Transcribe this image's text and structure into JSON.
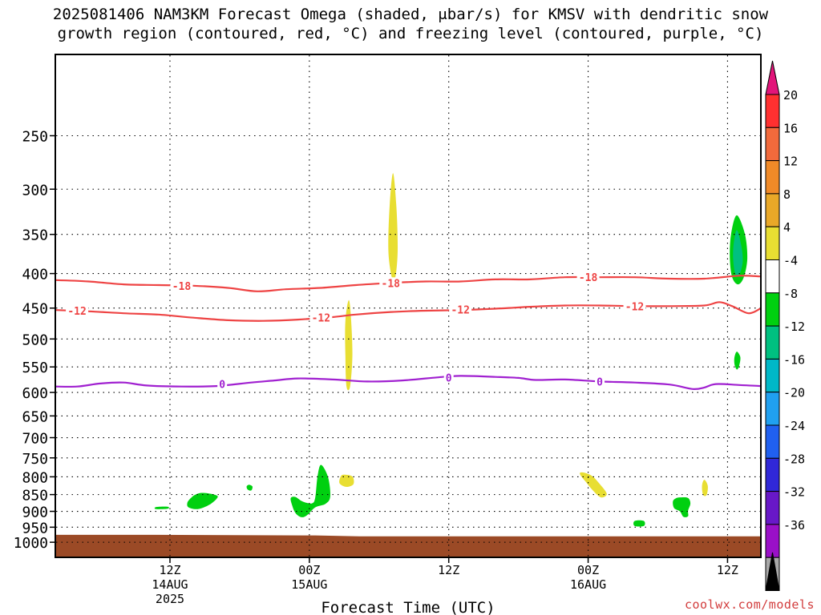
{
  "title": {
    "line1": "2025081406 NAM3KM Forecast Omega (shaded, μbar/s) for KMSV with dendritic snow",
    "line2": "growth region (contoured, red, °C) and freezing level (contoured, purple, °C)"
  },
  "credit": "coolwx.com/models",
  "chart_data": {
    "type": "contour",
    "xlabel": "Forecast Time (UTC)",
    "x_unit": "forecast hour",
    "xlim": [
      -3.8,
      56.8
    ],
    "x_ticks": [
      {
        "hour": 6,
        "lines": [
          "12Z",
          "14AUG",
          "2025"
        ]
      },
      {
        "hour": 18,
        "lines": [
          "00Z",
          "15AUG"
        ]
      },
      {
        "hour": 30,
        "lines": [
          "12Z"
        ]
      },
      {
        "hour": 42,
        "lines": [
          "00Z",
          "16AUG"
        ]
      },
      {
        "hour": 54,
        "lines": [
          "12Z"
        ]
      }
    ],
    "ylabel": "",
    "y_unit": "hPa",
    "y_scale": "log",
    "ylim": [
      1050,
      190
    ],
    "y_ticks": [
      250,
      300,
      350,
      400,
      450,
      500,
      550,
      600,
      650,
      700,
      750,
      800,
      850,
      900,
      950,
      1000
    ],
    "grid": true,
    "colorbar": {
      "labels": [
        "20",
        "16",
        "12",
        "8",
        "4",
        "-4",
        "-8",
        "-12",
        "-16",
        "-20",
        "-24",
        "-28",
        "-32",
        "-36"
      ],
      "colors": [
        "#ff3030",
        "#f26a3c",
        "#f08a28",
        "#e9a828",
        "#e8de32",
        "#ffffff",
        "#00d010",
        "#00c080",
        "#00b8c8",
        "#20a0f0",
        "#2060f0",
        "#3028d8",
        "#6818c8",
        "#9a10c8",
        "#a8a8a8"
      ],
      "top_arrow_color": "#e2157a",
      "bottom_arrow_color": "#000000"
    },
    "terrain_color": "#9b4a26",
    "terrain_top_hPa": [
      {
        "hour": -3.8,
        "p": 975
      },
      {
        "hour": 4.8,
        "p": 975
      },
      {
        "hour": 17.5,
        "p": 977
      },
      {
        "hour": 18.5,
        "p": 977
      },
      {
        "hour": 22.3,
        "p": 980
      },
      {
        "hour": 56.8,
        "p": 980
      }
    ],
    "contours": [
      {
        "level": "-18",
        "color": "#ee4444",
        "points": [
          [
            -3.8,
            409
          ],
          [
            -1,
            411
          ],
          [
            2,
            415
          ],
          [
            5,
            416
          ],
          [
            8,
            417
          ],
          [
            11,
            420
          ],
          [
            13.5,
            425
          ],
          [
            16,
            422
          ],
          [
            19,
            420
          ],
          [
            22,
            416
          ],
          [
            25,
            413
          ],
          [
            28,
            411
          ],
          [
            31,
            411
          ],
          [
            34,
            408
          ],
          [
            37,
            408
          ],
          [
            40,
            405
          ],
          [
            43,
            405
          ],
          [
            46,
            405
          ],
          [
            49,
            407
          ],
          [
            52,
            407
          ],
          [
            55,
            403
          ],
          [
            56.8,
            404
          ]
        ],
        "labels": [
          [
            7,
            417
          ],
          [
            25,
            413
          ],
          [
            42,
            405
          ]
        ]
      },
      {
        "level": "-12",
        "color": "#ee4444",
        "points": [
          [
            -3.8,
            453
          ],
          [
            -1,
            455
          ],
          [
            2,
            458
          ],
          [
            5,
            460
          ],
          [
            8,
            465
          ],
          [
            11,
            469
          ],
          [
            14,
            470
          ],
          [
            17,
            468
          ],
          [
            20,
            464
          ],
          [
            22,
            460
          ],
          [
            25,
            456
          ],
          [
            28,
            454
          ],
          [
            31,
            453
          ],
          [
            34,
            451
          ],
          [
            37,
            448
          ],
          [
            40,
            446
          ],
          [
            43,
            446
          ],
          [
            46,
            447
          ],
          [
            49,
            447
          ],
          [
            52,
            446
          ],
          [
            53.3,
            441
          ],
          [
            54.4,
            447
          ],
          [
            55.8,
            458
          ],
          [
            56.8,
            451
          ]
        ],
        "labels": [
          [
            -2,
            454
          ],
          [
            19,
            465
          ],
          [
            31,
            452
          ],
          [
            46,
            447
          ]
        ]
      },
      {
        "level": "0",
        "color": "#a020d0",
        "points": [
          [
            -3.8,
            588
          ],
          [
            -2,
            588
          ],
          [
            0,
            582
          ],
          [
            2,
            580
          ],
          [
            4,
            586
          ],
          [
            7,
            588
          ],
          [
            10,
            587
          ],
          [
            13,
            580
          ],
          [
            15,
            576
          ],
          [
            17,
            572
          ],
          [
            20,
            574
          ],
          [
            23,
            578
          ],
          [
            26,
            576
          ],
          [
            29,
            570
          ],
          [
            31,
            567
          ],
          [
            34,
            569
          ],
          [
            36,
            571
          ],
          [
            37.5,
            575
          ],
          [
            40,
            574
          ],
          [
            43,
            578
          ],
          [
            46,
            580
          ],
          [
            49,
            584
          ],
          [
            51,
            593
          ],
          [
            52,
            590
          ],
          [
            53,
            583
          ],
          [
            55,
            585
          ],
          [
            56.8,
            587
          ]
        ],
        "labels": [
          [
            10.5,
            583
          ],
          [
            30,
            570
          ],
          [
            43,
            578
          ]
        ]
      }
    ],
    "shaded_regions": [
      {
        "value": 6,
        "color": "#e8de32",
        "points": [
          [
            25.2,
            284
          ],
          [
            25.5,
            320
          ],
          [
            25.6,
            370
          ],
          [
            25.4,
            405
          ],
          [
            25.1,
            405
          ],
          [
            24.8,
            370
          ],
          [
            24.9,
            320
          ]
        ]
      },
      {
        "value": 6,
        "color": "#e8de32",
        "points": [
          [
            21.4,
            438
          ],
          [
            21.6,
            470
          ],
          [
            21.7,
            530
          ],
          [
            21.5,
            588
          ],
          [
            21.2,
            588
          ],
          [
            21.1,
            530
          ],
          [
            21.1,
            470
          ]
        ]
      },
      {
        "value": 6,
        "color": "#e8de32",
        "points": [
          [
            21.0,
            794
          ],
          [
            21.7,
            799
          ],
          [
            21.8,
            820
          ],
          [
            21.2,
            828
          ],
          [
            20.6,
            818
          ],
          [
            20.7,
            799
          ]
        ]
      },
      {
        "value": 6,
        "color": "#e8de32",
        "points": [
          [
            41.5,
            788
          ],
          [
            42.3,
            797
          ],
          [
            43.0,
            820
          ],
          [
            43.6,
            848
          ],
          [
            43.1,
            858
          ],
          [
            42.4,
            838
          ],
          [
            41.8,
            814
          ],
          [
            41.3,
            793
          ]
        ]
      },
      {
        "value": 6,
        "color": "#e8de32",
        "points": [
          [
            52.0,
            808
          ],
          [
            52.3,
            825
          ],
          [
            52.2,
            851
          ],
          [
            51.9,
            851
          ],
          [
            51.8,
            825
          ]
        ]
      },
      {
        "value": -6,
        "color": "#00d010",
        "points": [
          [
            8.2,
            850
          ],
          [
            8.8,
            845
          ],
          [
            9.8,
            850
          ],
          [
            10.1,
            858
          ],
          [
            9.4,
            880
          ],
          [
            8.4,
            893
          ],
          [
            7.6,
            888
          ],
          [
            7.5,
            874
          ],
          [
            7.8,
            860
          ]
        ]
      },
      {
        "value": -6,
        "color": "#00d010",
        "points": [
          [
            16.8,
            857
          ],
          [
            17.4,
            870
          ],
          [
            18.2,
            876
          ],
          [
            18.5,
            860
          ],
          [
            18.7,
            800
          ],
          [
            19.0,
            768
          ],
          [
            19.6,
            800
          ],
          [
            19.8,
            855
          ],
          [
            19.4,
            877
          ],
          [
            18.5,
            888
          ],
          [
            17.8,
            912
          ],
          [
            17.3,
            918
          ],
          [
            16.8,
            905
          ],
          [
            16.5,
            880
          ],
          [
            16.4,
            860
          ]
        ]
      },
      {
        "value": -6,
        "color": "#00d010",
        "points": [
          [
            4.8,
            887
          ],
          [
            5.8,
            886
          ],
          [
            5.8,
            892
          ],
          [
            4.8,
            893
          ]
        ]
      },
      {
        "value": -6,
        "color": "#00d010",
        "points": [
          [
            12.8,
            822
          ],
          [
            13.1,
            827
          ],
          [
            13.0,
            838
          ],
          [
            12.7,
            836
          ],
          [
            12.6,
            827
          ]
        ]
      },
      {
        "value": -6,
        "color": "#00d010",
        "points": [
          [
            50.0,
            858
          ],
          [
            50.6,
            860
          ],
          [
            50.8,
            876
          ],
          [
            50.6,
            898
          ],
          [
            50.6,
            915
          ],
          [
            50.2,
            917
          ],
          [
            49.9,
            900
          ],
          [
            49.4,
            890
          ],
          [
            49.3,
            870
          ],
          [
            49.6,
            860
          ]
        ]
      },
      {
        "value": -6,
        "color": "#00d010",
        "points": [
          [
            46.0,
            930
          ],
          [
            46.8,
            930
          ],
          [
            46.8,
            946
          ],
          [
            46.0,
            946
          ]
        ]
      },
      {
        "value": -6,
        "color": "#00d010",
        "points": [
          [
            54.8,
            328
          ],
          [
            55.5,
            350
          ],
          [
            55.7,
            380
          ],
          [
            55.4,
            405
          ],
          [
            54.9,
            415
          ],
          [
            54.4,
            405
          ],
          [
            54.2,
            380
          ],
          [
            54.3,
            350
          ]
        ]
      },
      {
        "value": -10,
        "color": "#00c080",
        "points": [
          [
            54.8,
            345
          ],
          [
            55.2,
            365
          ],
          [
            55.3,
            385
          ],
          [
            55.0,
            402
          ],
          [
            54.7,
            402
          ],
          [
            54.5,
            385
          ],
          [
            54.5,
            365
          ]
        ]
      },
      {
        "value": -6,
        "color": "#00d010",
        "points": [
          [
            54.8,
            522
          ],
          [
            55.1,
            532
          ],
          [
            55.0,
            548
          ],
          [
            54.8,
            555
          ],
          [
            54.6,
            545
          ],
          [
            54.6,
            532
          ]
        ]
      }
    ]
  }
}
